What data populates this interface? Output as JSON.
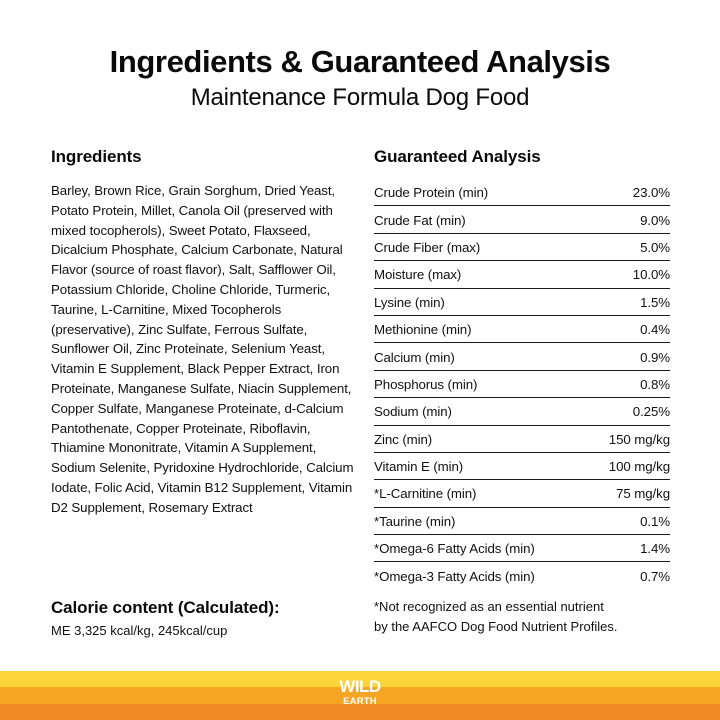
{
  "header": {
    "title": "Ingredients & Guaranteed Analysis",
    "subtitle": "Maintenance Formula Dog Food"
  },
  "ingredients": {
    "heading": "Ingredients",
    "text": "Barley, Brown Rice, Grain Sorghum, Dried Yeast, Potato Protein, Millet, Canola Oil (preserved with mixed tocopherols), Sweet Potato, Flaxseed, Dicalcium Phosphate, Calcium Carbonate, Natural Flavor (source of roast flavor), Salt, Safflower Oil, Potassium Chloride, Choline Chloride, Turmeric, Taurine, L-Carnitine, Mixed Tocopherols (preservative), Zinc Sulfate, Ferrous Sulfate, Sunflower Oil, Zinc Proteinate, Selenium Yeast, Vitamin E Supplement, Black Pepper Extract, Iron Proteinate, Manganese Sulfate, Niacin Supplement, Copper Sulfate, Manganese Proteinate, d-Calcium Pantothenate, Copper Proteinate, Riboflavin, Thiamine Mononitrate, Vitamin A Supplement, Sodium Selenite, Pyridoxine Hydrochloride, Calcium Iodate, Folic Acid, Vitamin B12 Supplement, Vitamin D2 Supplement, Rosemary Extract"
  },
  "calorie": {
    "heading": "Calorie content (Calculated):",
    "value": "ME 3,325 kcal/kg, 245kcal/cup"
  },
  "analysis": {
    "heading": "Guaranteed Analysis",
    "rows": [
      {
        "label": "Crude Protein (min)",
        "value": "23.0%"
      },
      {
        "label": "Crude Fat (min)",
        "value": "9.0%"
      },
      {
        "label": "Crude Fiber (max)",
        "value": "5.0%"
      },
      {
        "label": "Moisture (max)",
        "value": "10.0%"
      },
      {
        "label": "Lysine (min)",
        "value": "1.5%"
      },
      {
        "label": "Methionine (min)",
        "value": "0.4%"
      },
      {
        "label": "Calcium (min)",
        "value": "0.9%"
      },
      {
        "label": "Phosphorus (min)",
        "value": "0.8%"
      },
      {
        "label": "Sodium (min)",
        "value": "0.25%"
      },
      {
        "label": "Zinc (min)",
        "value": "150 mg/kg"
      },
      {
        "label": "Vitamin E (min)",
        "value": "100 mg/kg"
      },
      {
        "label": "*L-Carnitine (min)",
        "value": "75 mg/kg"
      },
      {
        "label": "*Taurine (min)",
        "value": "0.1%"
      },
      {
        "label": "*Omega-6 Fatty Acids (min)",
        "value": "1.4%"
      },
      {
        "label": "*Omega-3 Fatty Acids (min)",
        "value": "0.7%"
      }
    ],
    "footnote_line1": "*Not recognized as an essential nutrient",
    "footnote_line2": "by the AAFCO Dog Food Nutrient Profiles."
  },
  "footer": {
    "logo_line1": "WILD",
    "logo_line2": "EARTH",
    "colors": {
      "stripe_top": "#fdd43a",
      "stripe_middle": "#f6a623",
      "stripe_bottom": "#f18a24"
    }
  }
}
